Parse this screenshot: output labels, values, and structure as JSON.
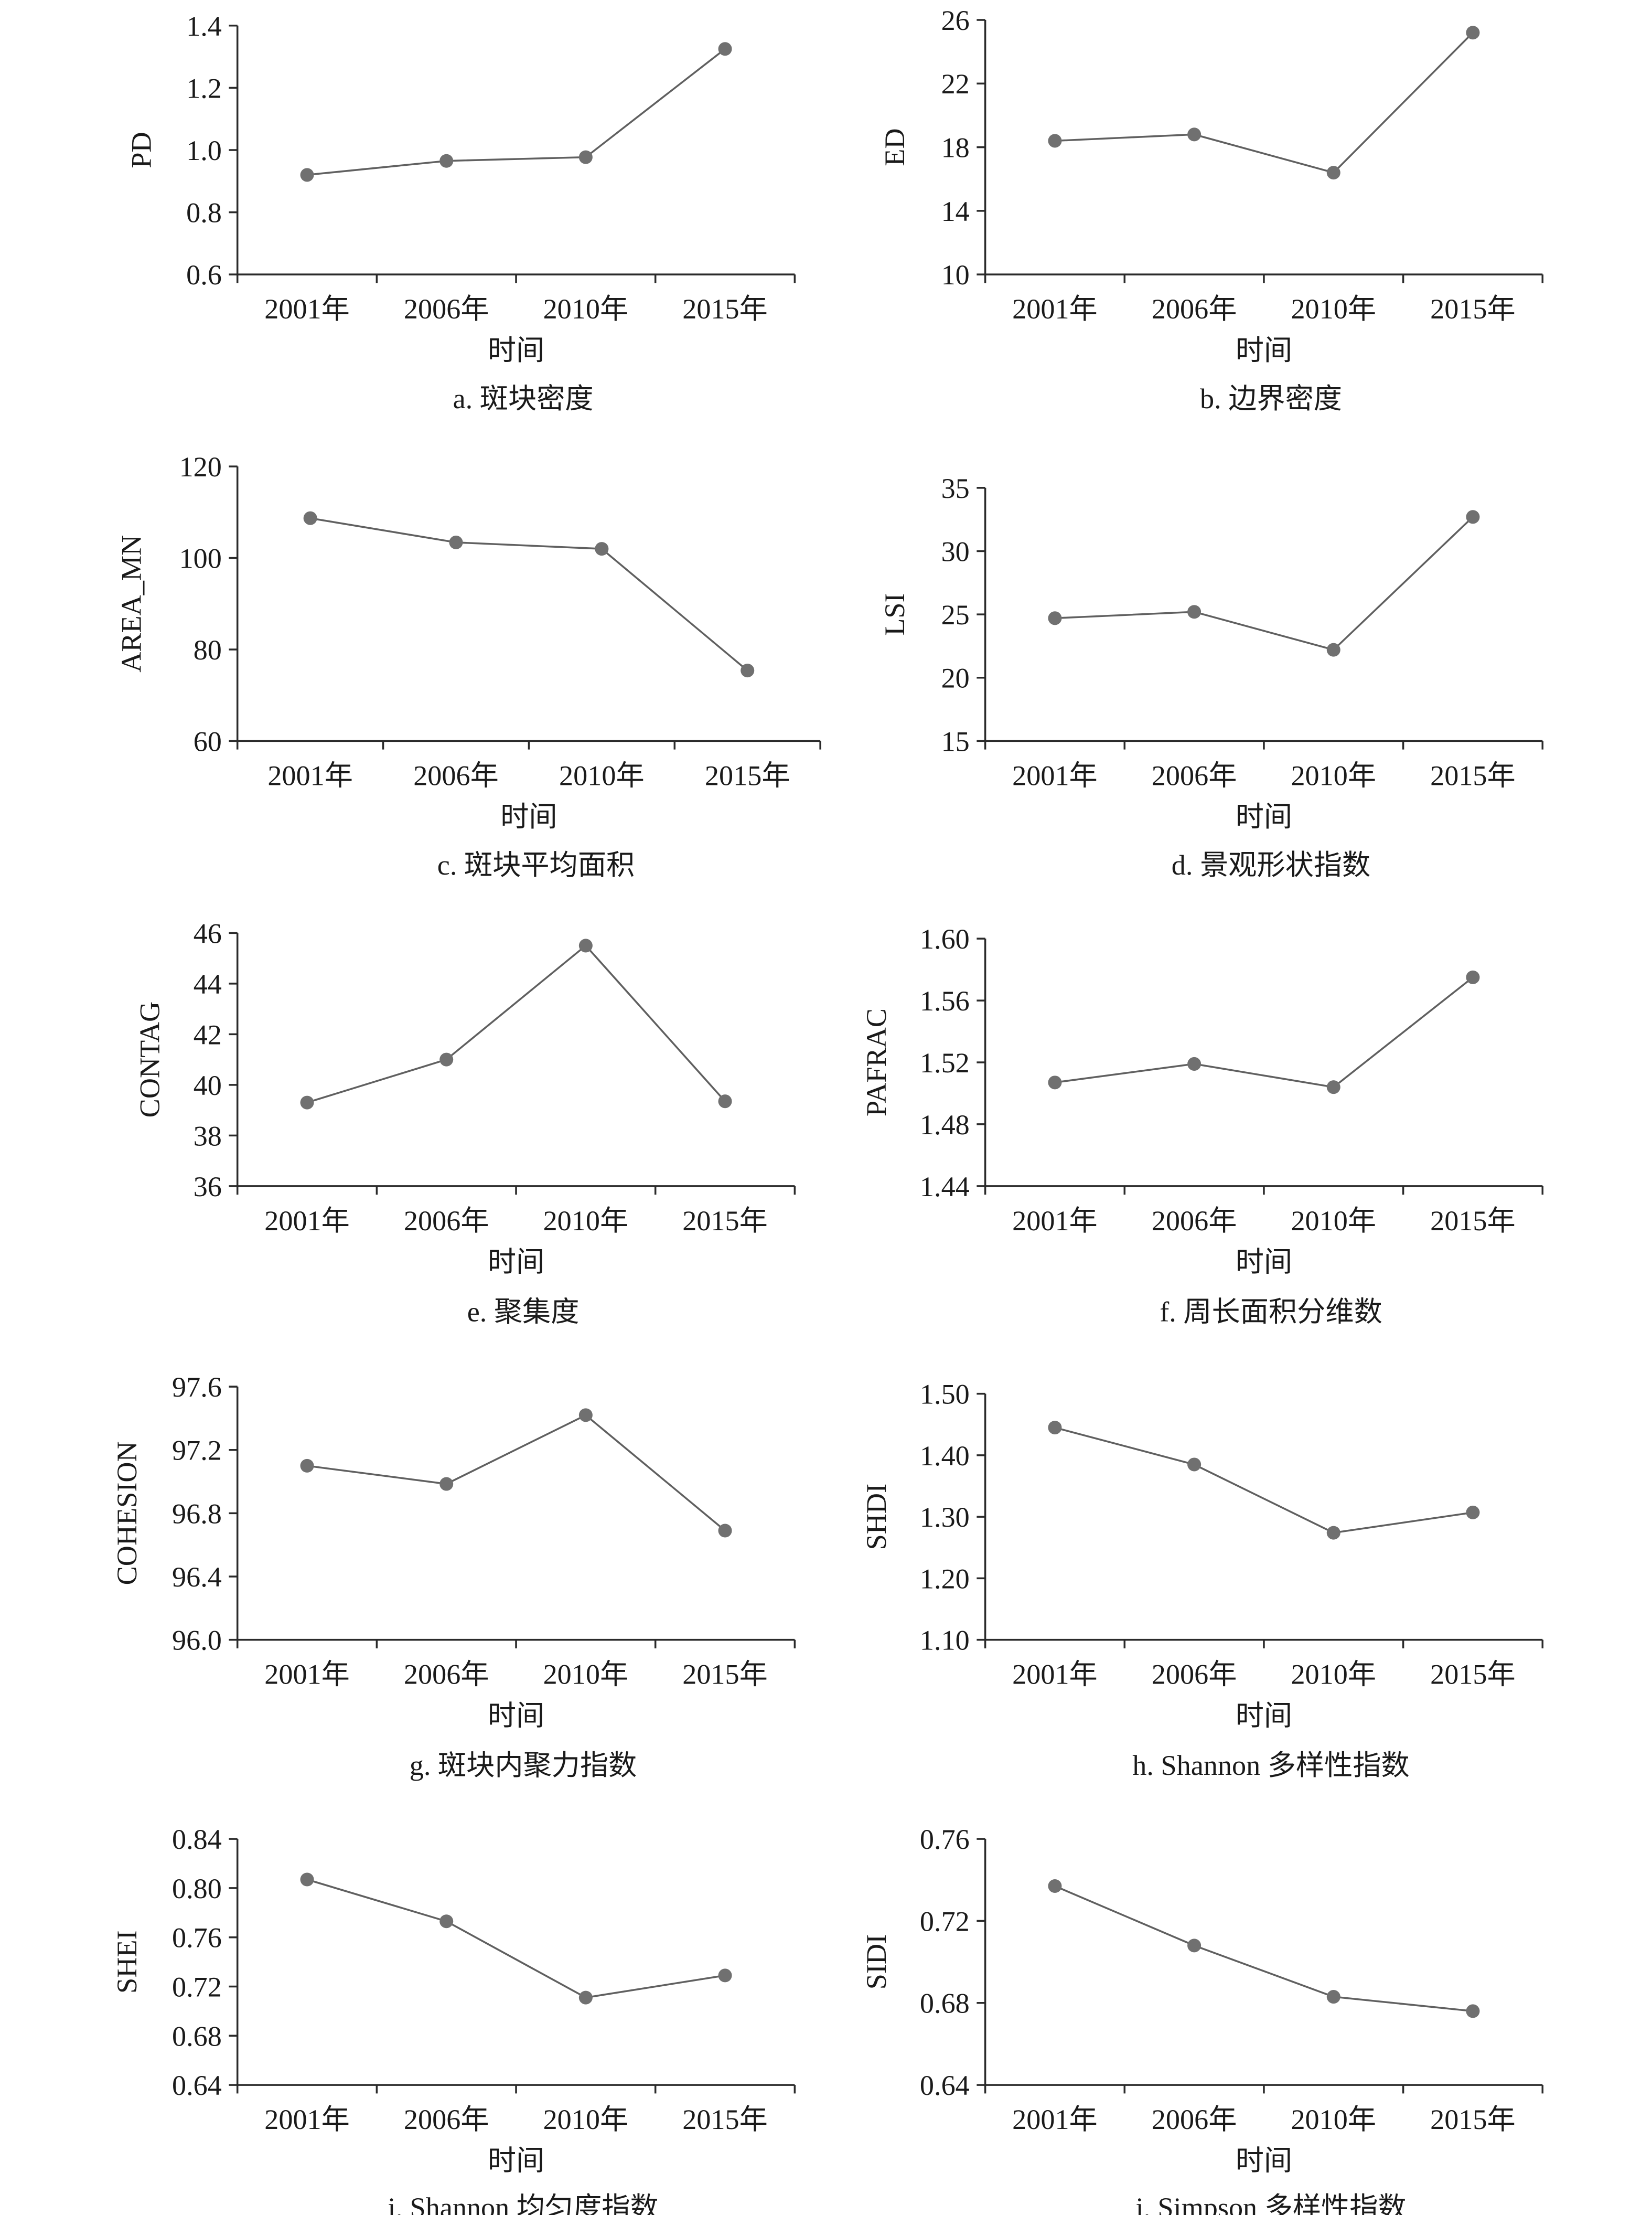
{
  "chart_data": [
    {
      "type": "line",
      "caption": "a. 斑块密度",
      "xlabel": "时间",
      "ylabel": "PD",
      "categories": [
        "2001年",
        "2006年",
        "2010年",
        "2015年"
      ],
      "values": [
        0.92,
        0.965,
        0.977,
        1.325
      ],
      "ylim": [
        0.6,
        1.4
      ],
      "yticks": [
        "0.6",
        "0.8",
        "1.0",
        "1.2",
        "1.4"
      ],
      "marker_color": "#707070",
      "line_color": "#606060",
      "grid": false
    },
    {
      "type": "line",
      "caption": "b. 边界密度",
      "xlabel": "时间",
      "ylabel": "ED",
      "categories": [
        "2001年",
        "2006年",
        "2010年",
        "2015年"
      ],
      "values": [
        18.4,
        18.8,
        16.4,
        25.2
      ],
      "ylim": [
        10,
        26
      ],
      "yticks": [
        "10",
        "14",
        "18",
        "22",
        "26"
      ],
      "marker_color": "#707070",
      "line_color": "#606060",
      "grid": false
    },
    {
      "type": "line",
      "caption": "c. 斑块平均面积",
      "xlabel": "时间",
      "ylabel": "AREA_MN",
      "categories": [
        "2001年",
        "2006年",
        "2010年",
        "2015年"
      ],
      "values": [
        108.7,
        103.4,
        102.0,
        75.4
      ],
      "ylim": [
        60,
        120
      ],
      "yticks": [
        "60",
        "80",
        "100",
        "120"
      ],
      "marker_color": "#707070",
      "line_color": "#606060",
      "grid": false
    },
    {
      "type": "line",
      "caption": "d. 景观形状指数",
      "xlabel": "时间",
      "ylabel": "LSI",
      "categories": [
        "2001年",
        "2006年",
        "2010年",
        "2015年"
      ],
      "values": [
        24.7,
        25.2,
        22.2,
        32.7
      ],
      "ylim": [
        15,
        35
      ],
      "yticks": [
        "15",
        "20",
        "25",
        "30",
        "35"
      ],
      "marker_color": "#707070",
      "line_color": "#606060",
      "grid": false
    },
    {
      "type": "line",
      "caption": "e. 聚集度",
      "xlabel": "时间",
      "ylabel": "CONTAG",
      "categories": [
        "2001年",
        "2006年",
        "2010年",
        "2015年"
      ],
      "values": [
        39.3,
        41.0,
        45.5,
        39.35
      ],
      "ylim": [
        36,
        46
      ],
      "yticks": [
        "36",
        "38",
        "40",
        "42",
        "44",
        "46"
      ],
      "marker_color": "#707070",
      "line_color": "#606060",
      "grid": false
    },
    {
      "type": "line",
      "caption": "f. 周长面积分维数",
      "xlabel": "时间",
      "ylabel": "PAFRAC",
      "categories": [
        "2001年",
        "2006年",
        "2010年",
        "2015年"
      ],
      "values": [
        1.507,
        1.519,
        1.504,
        1.575
      ],
      "ylim": [
        1.44,
        1.6
      ],
      "yticks": [
        "1.44",
        "1.48",
        "1.52",
        "1.56",
        "1.60"
      ],
      "marker_color": "#707070",
      "line_color": "#606060",
      "grid": false
    },
    {
      "type": "line",
      "caption": "g. 斑块内聚力指数",
      "xlabel": "时间",
      "ylabel": "COHESION",
      "categories": [
        "2001年",
        "2006年",
        "2010年",
        "2015年"
      ],
      "values": [
        97.1,
        96.985,
        97.42,
        96.69
      ],
      "ylim": [
        96.0,
        97.6
      ],
      "yticks": [
        "96.0",
        "96.4",
        "96.8",
        "97.2",
        "97.6"
      ],
      "marker_color": "#707070",
      "line_color": "#606060",
      "grid": false
    },
    {
      "type": "line",
      "caption": "h. Shannon 多样性指数",
      "xlabel": "时间",
      "ylabel": "SHDI",
      "categories": [
        "2001年",
        "2006年",
        "2010年",
        "2015年"
      ],
      "values": [
        1.445,
        1.385,
        1.274,
        1.307
      ],
      "ylim": [
        1.1,
        1.5
      ],
      "yticks": [
        "1.10",
        "1.20",
        "1.30",
        "1.40",
        "1.50"
      ],
      "marker_color": "#707070",
      "line_color": "#606060",
      "grid": false
    },
    {
      "type": "line",
      "caption": "i. Shannon 均匀度指数",
      "xlabel": "时间",
      "ylabel": "SHEI",
      "categories": [
        "2001年",
        "2006年",
        "2010年",
        "2015年"
      ],
      "values": [
        0.807,
        0.773,
        0.711,
        0.729
      ],
      "ylim": [
        0.64,
        0.84
      ],
      "yticks": [
        "0.64",
        "0.68",
        "0.72",
        "0.76",
        "0.80",
        "0.84"
      ],
      "marker_color": "#707070",
      "line_color": "#606060",
      "grid": false
    },
    {
      "type": "line",
      "caption": "j. Simpson 多样性指数",
      "xlabel": "时间",
      "ylabel": "SIDI",
      "categories": [
        "2001年",
        "2006年",
        "2010年",
        "2015年"
      ],
      "values": [
        0.737,
        0.708,
        0.683,
        0.676
      ],
      "ylim": [
        0.64,
        0.76
      ],
      "yticks": [
        "0.64",
        "0.68",
        "0.72",
        "0.76"
      ],
      "marker_color": "#707070",
      "line_color": "#606060",
      "grid": false
    }
  ]
}
